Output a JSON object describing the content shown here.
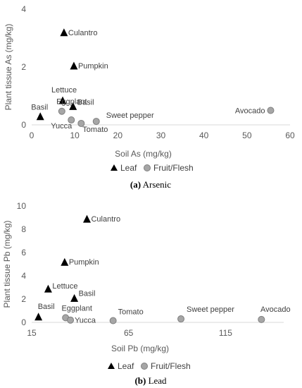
{
  "chart_data": [
    {
      "type": "scatter",
      "caption_letter": "(a)",
      "caption_text": "Arsenic",
      "xlabel": "Soil As (mg/kg)",
      "ylabel": "Plant tissue As (mg/kg)",
      "xlim": [
        0,
        60
      ],
      "ylim": [
        0,
        4
      ],
      "xticks": [
        0,
        10,
        20,
        30,
        40,
        50,
        60
      ],
      "yticks": [
        0,
        2,
        4
      ],
      "legend": {
        "placement": "bottom-center",
        "entries": [
          "Leaf",
          "Fruit/Flesh"
        ]
      },
      "series": [
        {
          "name": "Leaf",
          "marker": "triangle",
          "color": "#000000",
          "points": [
            {
              "label": "Culantro",
              "x": 7.5,
              "y": 3.2
            },
            {
              "label": "Pumpkin",
              "x": 9.8,
              "y": 2.05
            },
            {
              "label": "Lettuce",
              "x": 7.2,
              "y": 0.85
            },
            {
              "label": "Basil",
              "x": 9.6,
              "y": 0.65
            },
            {
              "label": "Basil",
              "x": 2.0,
              "y": 0.3
            }
          ]
        },
        {
          "name": "Fruit/Flesh",
          "marker": "circle",
          "color": "#a6a6a6",
          "points": [
            {
              "label": "Eggplant",
              "x": 7.0,
              "y": 0.47
            },
            {
              "label": "Yucca",
              "x": 9.2,
              "y": 0.17
            },
            {
              "label": "Tomato",
              "x": 11.5,
              "y": 0.05
            },
            {
              "label": "Sweet pepper",
              "x": 15.0,
              "y": 0.12
            },
            {
              "label": "Avocado",
              "x": 55.5,
              "y": 0.5
            }
          ]
        }
      ]
    },
    {
      "type": "scatter",
      "caption_letter": "(b)",
      "caption_text": "Lead",
      "xlabel": "Soil Pb (mg/kg)",
      "ylabel": "Plant tissue Pb (mg/kg)",
      "xlim": [
        15,
        145
      ],
      "ylim": [
        0,
        10
      ],
      "xticks": [
        15,
        65,
        115
      ],
      "yticks": [
        0,
        2,
        4,
        6,
        8,
        10
      ],
      "legend": {
        "placement": "bottom-center",
        "entries": [
          "Leaf",
          "Fruit/Flesh"
        ]
      },
      "series": [
        {
          "name": "Leaf",
          "marker": "triangle",
          "color": "#000000",
          "points": [
            {
              "label": "Culantro",
              "x": 43.5,
              "y": 8.9
            },
            {
              "label": "Pumpkin",
              "x": 32.0,
              "y": 5.2
            },
            {
              "label": "Lettuce",
              "x": 23.5,
              "y": 2.9
            },
            {
              "label": "Basil",
              "x": 37.0,
              "y": 2.1
            },
            {
              "label": "Basil",
              "x": 18.5,
              "y": 0.5
            }
          ]
        },
        {
          "name": "Fruit/Flesh",
          "marker": "circle",
          "color": "#a6a6a6",
          "points": [
            {
              "label": "Eggplant",
              "x": 32.5,
              "y": 0.4
            },
            {
              "label": "Yucca",
              "x": 35.0,
              "y": 0.2
            },
            {
              "label": "Tomato",
              "x": 57.0,
              "y": 0.15
            },
            {
              "label": "Sweet pepper",
              "x": 92.0,
              "y": 0.3
            },
            {
              "label": "Avocado",
              "x": 133.5,
              "y": 0.25
            }
          ]
        }
      ]
    }
  ]
}
